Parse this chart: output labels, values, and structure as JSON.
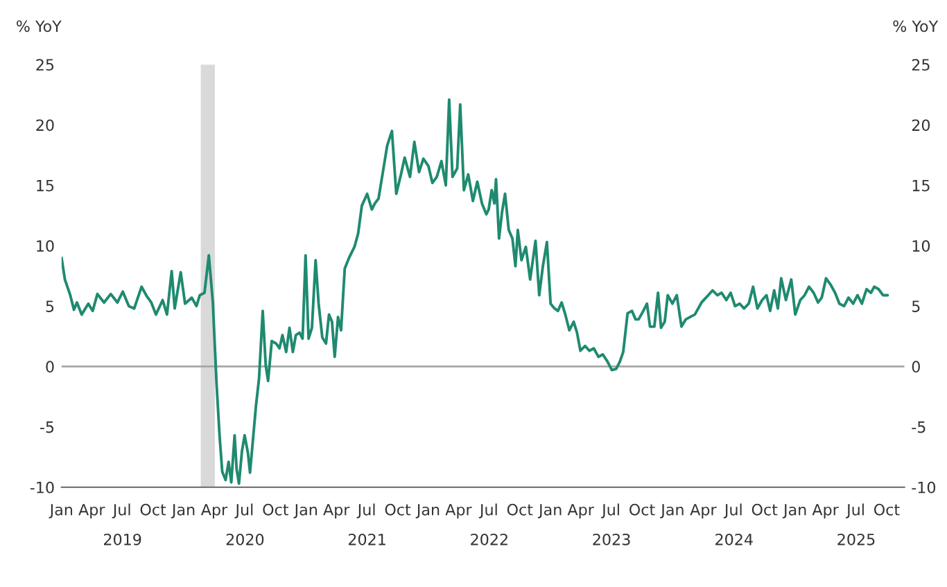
{
  "chart_data": {
    "type": "line",
    "ylabel": "% YoY",
    "y2label": "% YoY",
    "ylim": [
      -10,
      25
    ],
    "yticks": [
      -10,
      -5,
      0,
      5,
      10,
      15,
      20,
      25
    ],
    "y2lim": [
      -10,
      25
    ],
    "y2ticks": [
      -10,
      -5,
      0,
      5,
      10,
      15,
      20,
      25
    ],
    "xlim": [
      "2019-01-01",
      "2025-11-23"
    ],
    "xticks": [
      {
        "value": "2019-01-01",
        "label": "Jan"
      },
      {
        "value": "2019-04-01",
        "label": "Apr"
      },
      {
        "value": "2019-07-01",
        "label": "Jul"
      },
      {
        "value": "2019-10-01",
        "label": "Oct"
      },
      {
        "value": "2020-01-01",
        "label": "Jan"
      },
      {
        "value": "2020-04-01",
        "label": "Apr"
      },
      {
        "value": "2020-07-01",
        "label": "Jul"
      },
      {
        "value": "2020-10-01",
        "label": "Oct"
      },
      {
        "value": "2021-01-01",
        "label": "Jan"
      },
      {
        "value": "2021-04-01",
        "label": "Apr"
      },
      {
        "value": "2021-07-01",
        "label": "Jul"
      },
      {
        "value": "2021-10-01",
        "label": "Oct"
      },
      {
        "value": "2022-01-01",
        "label": "Jan"
      },
      {
        "value": "2022-04-01",
        "label": "Apr"
      },
      {
        "value": "2022-07-01",
        "label": "Jul"
      },
      {
        "value": "2022-10-01",
        "label": "Oct"
      },
      {
        "value": "2023-01-01",
        "label": "Jan"
      },
      {
        "value": "2023-04-01",
        "label": "Apr"
      },
      {
        "value": "2023-07-01",
        "label": "Jul"
      },
      {
        "value": "2023-10-01",
        "label": "Oct"
      },
      {
        "value": "2024-01-01",
        "label": "Jan"
      },
      {
        "value": "2024-04-01",
        "label": "Apr"
      },
      {
        "value": "2024-07-01",
        "label": "Jul"
      },
      {
        "value": "2024-10-01",
        "label": "Oct"
      },
      {
        "value": "2025-01-01",
        "label": "Jan"
      },
      {
        "value": "2025-04-01",
        "label": "Apr"
      },
      {
        "value": "2025-07-01",
        "label": "Jul"
      },
      {
        "value": "2025-10-01",
        "label": "Oct"
      }
    ],
    "annotations": [
      "2019",
      "2020",
      "2021",
      "2022",
      "2023",
      "2024",
      "2025"
    ],
    "ref_lines": [
      {
        "axis": "y",
        "value": 0,
        "label": null,
        "color": "#a6a6a6"
      }
    ],
    "bands": [
      {
        "axis": "x",
        "from": "2020-02-21",
        "to": "2020-04-03",
        "label": null,
        "color": "#d9d9d9"
      }
    ],
    "grid": false,
    "legend": false,
    "series": [
      {
        "color": "#1f8a70",
        "x": [
          "2019-01-01",
          "2019-01-11",
          "2019-01-27",
          "2019-02-07",
          "2019-02-16",
          "2019-03-02",
          "2019-03-22",
          "2019-04-04",
          "2019-04-18",
          "2019-05-08",
          "2019-05-28",
          "2019-06-17",
          "2019-07-03",
          "2019-07-21",
          "2019-08-06",
          "2019-08-28",
          "2019-09-13",
          "2019-09-26",
          "2019-10-10",
          "2019-10-30",
          "2019-11-12",
          "2019-11-26",
          "2019-12-05",
          "2019-12-23",
          "2020-01-05",
          "2020-01-25",
          "2020-02-08",
          "2020-02-18",
          "2020-03-03",
          "2020-03-16",
          "2020-03-28",
          "2020-04-08",
          "2020-04-17",
          "2020-04-25",
          "2020-05-05",
          "2020-05-14",
          "2020-05-22",
          "2020-06-01",
          "2020-06-07",
          "2020-06-14",
          "2020-06-23",
          "2020-07-01",
          "2020-07-11",
          "2020-07-17",
          "2020-07-27",
          "2020-08-04",
          "2020-08-13",
          "2020-08-24",
          "2020-09-02",
          "2020-09-09",
          "2020-09-20",
          "2020-10-03",
          "2020-10-13",
          "2020-10-22",
          "2020-11-02",
          "2020-11-12",
          "2020-11-22",
          "2020-12-01",
          "2020-12-12",
          "2020-12-21",
          "2020-12-30",
          "2021-01-08",
          "2021-01-18",
          "2021-01-29",
          "2021-02-07",
          "2021-02-18",
          "2021-03-01",
          "2021-03-10",
          "2021-03-19",
          "2021-03-27",
          "2021-04-06",
          "2021-04-15",
          "2021-04-26",
          "2021-05-09",
          "2021-05-25",
          "2021-06-05",
          "2021-06-16",
          "2021-07-02",
          "2021-07-16",
          "2021-07-25",
          "2021-08-05",
          "2021-08-18",
          "2021-08-31",
          "2021-09-14",
          "2021-09-27",
          "2021-10-11",
          "2021-10-22",
          "2021-11-07",
          "2021-11-20",
          "2021-12-04",
          "2021-12-17",
          "2022-01-01",
          "2022-01-13",
          "2022-01-26",
          "2022-02-09",
          "2022-02-22",
          "2022-03-04",
          "2022-03-14",
          "2022-03-28",
          "2022-04-06",
          "2022-04-17",
          "2022-04-30",
          "2022-05-14",
          "2022-05-27",
          "2022-06-10",
          "2022-06-23",
          "2022-06-30",
          "2022-07-09",
          "2022-07-17",
          "2022-07-22",
          "2022-07-31",
          "2022-08-09",
          "2022-08-18",
          "2022-08-29",
          "2022-09-09",
          "2022-09-18",
          "2022-09-25",
          "2022-10-06",
          "2022-10-19",
          "2022-11-01",
          "2022-11-17",
          "2022-11-28",
          "2022-12-09",
          "2022-12-21",
          "2023-01-01",
          "2023-01-13",
          "2023-01-23",
          "2023-02-03",
          "2023-02-14",
          "2023-02-26",
          "2023-03-11",
          "2023-03-21",
          "2023-03-31",
          "2023-04-14",
          "2023-04-27",
          "2023-05-10",
          "2023-05-24",
          "2023-06-06",
          "2023-06-20",
          "2023-07-03",
          "2023-07-16",
          "2023-07-27",
          "2023-08-06",
          "2023-08-19",
          "2023-09-01",
          "2023-09-12",
          "2023-09-21",
          "2023-10-05",
          "2023-10-16",
          "2023-10-25",
          "2023-11-07",
          "2023-11-18",
          "2023-11-27",
          "2023-12-08",
          "2023-12-17",
          "2023-12-31",
          "2024-01-13",
          "2024-01-27",
          "2024-02-09",
          "2024-02-22",
          "2024-03-07",
          "2024-03-27",
          "2024-04-16",
          "2024-04-29",
          "2024-05-13",
          "2024-05-26",
          "2024-06-09",
          "2024-06-22",
          "2024-07-05",
          "2024-07-19",
          "2024-08-01",
          "2024-08-15",
          "2024-08-28",
          "2024-09-10",
          "2024-09-24",
          "2024-10-07",
          "2024-10-18",
          "2024-10-30",
          "2024-11-10",
          "2024-11-20",
          "2024-12-04",
          "2024-12-20",
          "2025-01-01",
          "2025-01-16",
          "2025-01-29",
          "2025-02-11",
          "2025-02-25",
          "2025-03-10",
          "2025-03-21",
          "2025-04-03",
          "2025-04-16",
          "2025-04-30",
          "2025-05-13",
          "2025-05-27",
          "2025-06-09",
          "2025-06-23",
          "2025-07-06",
          "2025-07-19",
          "2025-08-02",
          "2025-08-15",
          "2025-08-25",
          "2025-09-07",
          "2025-09-20",
          "2025-10-04"
        ],
        "values": [
          9.0,
          7.2,
          5.9,
          4.7,
          5.3,
          4.3,
          5.2,
          4.6,
          6.0,
          5.3,
          6.0,
          5.3,
          6.2,
          5.0,
          4.8,
          6.6,
          5.8,
          5.3,
          4.3,
          5.5,
          4.3,
          7.9,
          4.8,
          7.8,
          5.2,
          5.7,
          5.0,
          5.9,
          6.1,
          9.2,
          5.3,
          -1.4,
          -5.7,
          -8.7,
          -9.4,
          -7.9,
          -9.6,
          -5.7,
          -8.5,
          -9.7,
          -7.0,
          -5.7,
          -7.2,
          -8.8,
          -5.7,
          -3.2,
          -1.0,
          4.6,
          0.1,
          -1.2,
          2.1,
          1.9,
          1.5,
          2.6,
          1.2,
          3.2,
          1.2,
          2.6,
          2.8,
          2.3,
          9.2,
          2.3,
          3.2,
          8.8,
          5.2,
          2.4,
          1.9,
          4.3,
          3.7,
          0.8,
          4.1,
          3.0,
          8.1,
          9.0,
          9.9,
          11.0,
          13.3,
          14.3,
          13.0,
          13.5,
          13.9,
          16.1,
          18.3,
          19.5,
          14.3,
          15.9,
          17.3,
          15.7,
          18.6,
          16.1,
          17.2,
          16.6,
          15.2,
          15.7,
          17.0,
          15.0,
          22.1,
          15.7,
          16.4,
          21.7,
          14.6,
          15.9,
          13.7,
          15.3,
          13.5,
          12.6,
          13.0,
          14.6,
          13.5,
          15.5,
          10.6,
          12.8,
          14.3,
          11.3,
          10.6,
          8.3,
          11.3,
          8.8,
          9.9,
          7.2,
          10.4,
          5.9,
          8.3,
          10.3,
          5.2,
          4.8,
          4.6,
          5.3,
          4.3,
          3.0,
          3.7,
          2.8,
          1.3,
          1.7,
          1.3,
          1.5,
          0.8,
          1.0,
          0.4,
          -0.3,
          -0.2,
          0.4,
          1.2,
          4.4,
          4.6,
          3.9,
          3.9,
          4.6,
          5.2,
          3.3,
          3.3,
          6.1,
          3.2,
          3.7,
          5.9,
          5.2,
          5.9,
          3.3,
          3.9,
          4.1,
          4.3,
          5.3,
          5.9,
          6.3,
          5.9,
          6.1,
          5.5,
          6.1,
          5.0,
          5.2,
          4.8,
          5.2,
          6.6,
          4.8,
          5.5,
          5.9,
          4.6,
          6.3,
          4.8,
          7.3,
          5.5,
          7.2,
          4.3,
          5.5,
          5.9,
          6.6,
          6.1,
          5.3,
          5.7,
          7.3,
          6.8,
          6.1,
          5.2,
          5.0,
          5.7,
          5.2,
          5.9,
          5.2,
          6.4,
          6.1,
          6.6,
          6.4,
          5.9,
          5.9
        ]
      }
    ]
  }
}
